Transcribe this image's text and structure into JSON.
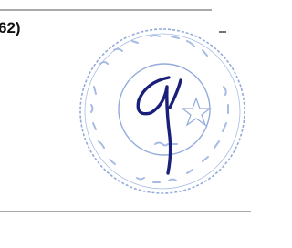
{
  "document": {
    "reference": "62)"
  }
}
